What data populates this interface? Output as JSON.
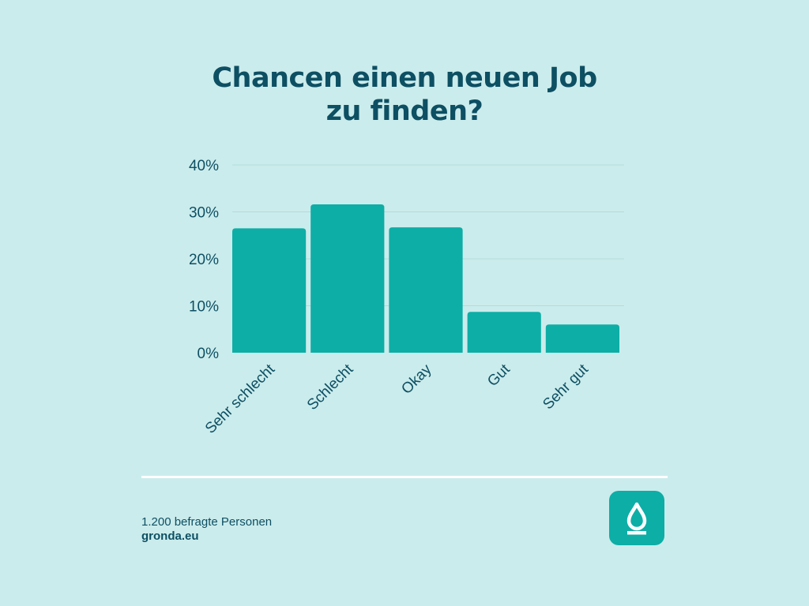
{
  "title_line1": "Chancen einen neuen Job",
  "title_line2": "zu finden?",
  "chart_data": {
    "type": "bar",
    "title": "Chancen einen neuen Job zu finden?",
    "categories": [
      "Sehr schlecht",
      "Schlecht",
      "Okay",
      "Gut",
      "Sehr gut"
    ],
    "values": [
      26.5,
      31.6,
      26.7,
      8.7,
      6.0
    ],
    "yticks": [
      "0%",
      "10%",
      "20%",
      "30%",
      "40%"
    ],
    "ylim": [
      0,
      40
    ],
    "xlabel": "",
    "ylabel": "",
    "grid": true,
    "bar_color": "#0daea6"
  },
  "footer": {
    "sample": "1.200 befragte Personen",
    "source": "gronda.eu"
  },
  "logo": {
    "icon": "drop-icon",
    "color": "#0daea6"
  }
}
